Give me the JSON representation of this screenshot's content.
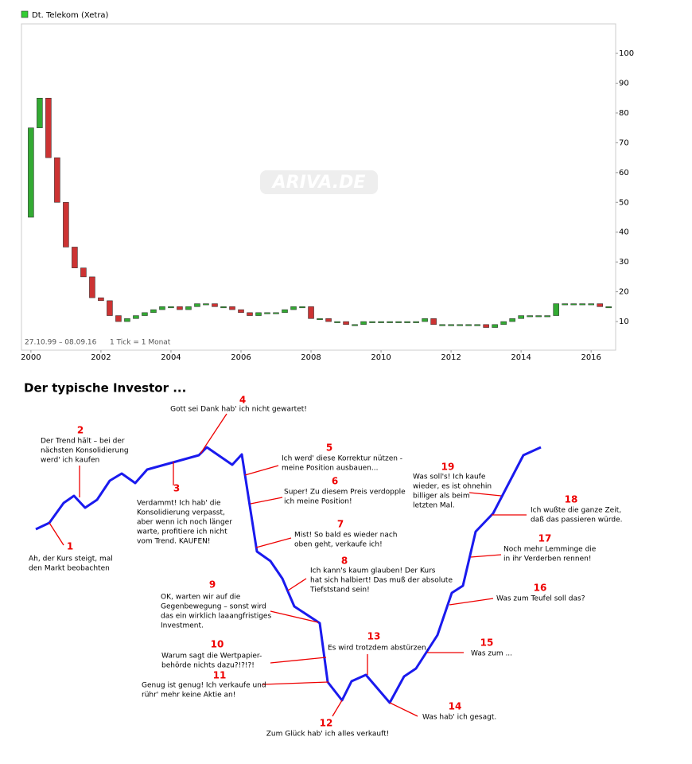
{
  "chart_data": {
    "type": "candlestick",
    "legend": "Dt. Telekom (Xetra)",
    "watermark": "ARIVA.DE",
    "range_label": "27.10.99 – 08.09.16",
    "tick_label": "1 Tick = 1 Monat",
    "up_color": "#33aa33",
    "down_color": "#cc3333",
    "x": [
      1999.75,
      2000,
      2000.25,
      2000.5,
      2000.75,
      2001,
      2001.25,
      2001.5,
      2001.75,
      2002,
      2002.25,
      2002.5,
      2002.75,
      2003,
      2003.25,
      2003.5,
      2003.75,
      2004,
      2004.25,
      2004.5,
      2004.75,
      2005,
      2005.25,
      2005.5,
      2005.75,
      2006,
      2006.25,
      2006.5,
      2006.75,
      2007,
      2007.25,
      2007.5,
      2007.75,
      2008,
      2008.25,
      2008.5,
      2008.75,
      2009,
      2009.25,
      2009.5,
      2009.75,
      2010,
      2010.25,
      2010.5,
      2010.75,
      2011,
      2011.25,
      2011.5,
      2011.75,
      2012,
      2012.25,
      2012.5,
      2012.75,
      2013,
      2013.25,
      2013.5,
      2013.75,
      2014,
      2014.25,
      2014.5,
      2014.75,
      2015,
      2015.25,
      2015.5,
      2015.75,
      2016,
      2016.25,
      2016.5
    ],
    "values": [
      45,
      75,
      85,
      65,
      50,
      35,
      28,
      25,
      18,
      17,
      12,
      10,
      11,
      12,
      13,
      14,
      15,
      15,
      14,
      15,
      16,
      16,
      15,
      15,
      14,
      13,
      12,
      13,
      13,
      13,
      14,
      15,
      15,
      11,
      11,
      10,
      10,
      9,
      9,
      10,
      10,
      10,
      10,
      10,
      10,
      10,
      11,
      9,
      9,
      9,
      9,
      9,
      9,
      8,
      9,
      10,
      11,
      12,
      12,
      12,
      12,
      16,
      16,
      16,
      16,
      16,
      15,
      15
    ],
    "xlim": [
      1999.73,
      2016.7
    ],
    "ylim": [
      0.4,
      109.9
    ],
    "xticks": [
      2000,
      2002,
      2004,
      2006,
      2008,
      2010,
      2012,
      2014,
      2016
    ],
    "yticks": [
      10,
      20,
      30,
      40,
      50,
      60,
      70,
      80,
      90,
      100
    ]
  },
  "investor": {
    "title": "Der typische Investor ...",
    "notes": [
      {
        "number": "1",
        "lines": [
          "Ah, der Kurs steigt, mal",
          "den Markt beobachten"
        ]
      },
      {
        "number": "2",
        "lines": [
          "Der Trend hält – bei der",
          "nächsten Konsolidierung",
          "werd' ich kaufen"
        ]
      },
      {
        "number": "3",
        "lines": [
          "Verdammt! Ich hab' die",
          "Konsolidierung verpasst,",
          "aber wenn ich noch länger",
          "warte, profitiere ich nicht",
          "vom Trend. KAUFEN!"
        ]
      },
      {
        "number": "4",
        "lines": [
          "Gott sei Dank hab' ich nicht gewartet!"
        ]
      },
      {
        "number": "5",
        "lines": [
          "Ich werd' diese Korrektur nützen -",
          "meine Position ausbauen..."
        ]
      },
      {
        "number": "6",
        "lines": [
          "Super! Zu diesem Preis verdopple",
          "ich meine Position!"
        ]
      },
      {
        "number": "7",
        "lines": [
          "Mist! So bald es wieder nach",
          "oben geht, verkaufe ich!"
        ]
      },
      {
        "number": "8",
        "lines": [
          "Ich kann's kaum glauben! Der Kurs",
          "hat sich halbiert! Das muß der absolute",
          "Tiefststand sein!"
        ]
      },
      {
        "number": "9",
        "lines": [
          "OK, warten wir auf die",
          "Gegenbewegung – sonst wird",
          "das ein wirklich laaangfristiges",
          "Investment."
        ]
      },
      {
        "number": "10",
        "lines": [
          "Warum sagt die Wertpapier-",
          "behörde nichts dazu?!?!?!"
        ]
      },
      {
        "number": "11",
        "lines": [
          "Genug ist genug! Ich verkaufe und",
          "rühr' mehr keine Aktie an!"
        ]
      },
      {
        "number": "12",
        "lines": [
          "Zum Glück hab' ich alles verkauft!"
        ]
      },
      {
        "number": "13",
        "lines": [
          "Es wird trotzdem abstürzen."
        ]
      },
      {
        "number": "14",
        "lines": [
          "Was hab' ich gesagt."
        ]
      },
      {
        "number": "15",
        "lines": [
          "Was zum ..."
        ]
      },
      {
        "number": "16",
        "lines": [
          "Was zum Teufel soll das?"
        ]
      },
      {
        "number": "17",
        "lines": [
          "Noch mehr Lemminge die",
          "in ihr Verderben rennen!"
        ]
      },
      {
        "number": "18",
        "lines": [
          "Ich wußte die ganze Zeit,",
          "daß das passieren würde."
        ]
      },
      {
        "number": "19",
        "lines": [
          "Was soll's! Ich kaufe",
          "wieder, es ist ohnehin",
          "billiger als beim",
          "letzten Mal."
        ]
      }
    ]
  }
}
